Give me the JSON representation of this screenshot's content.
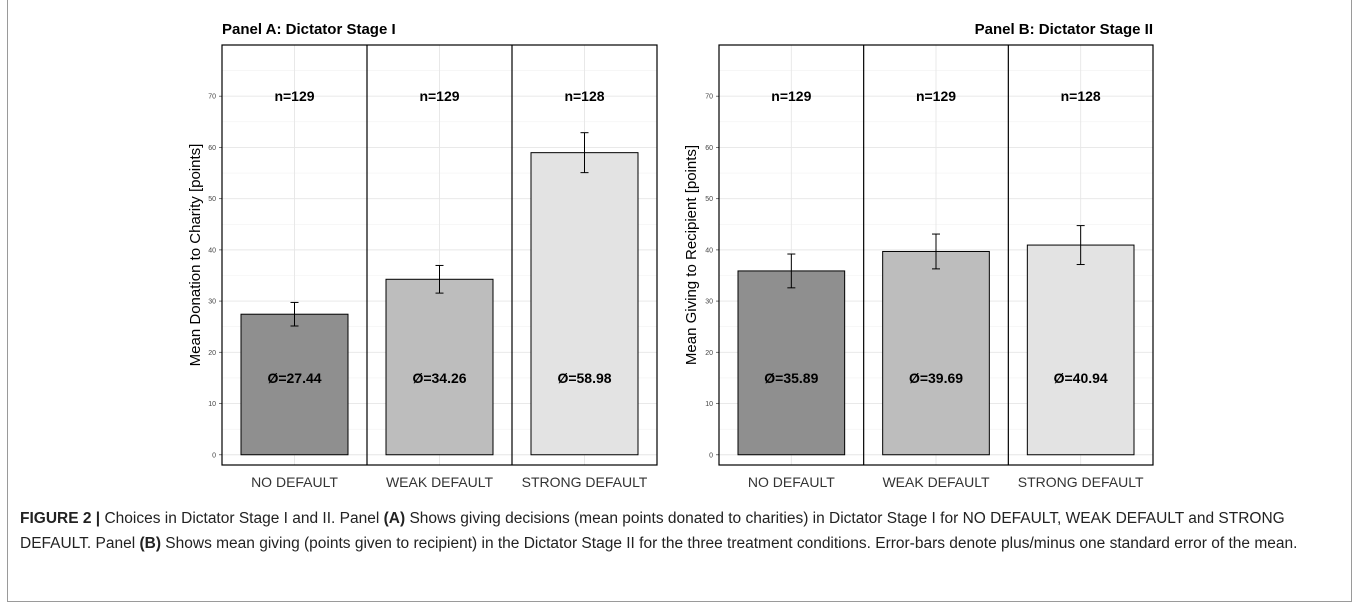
{
  "chart_data": [
    {
      "type": "bar",
      "title": "Panel A: Dictator Stage I",
      "ylabel": "Mean Donation to Charity [points]",
      "xlabel": "",
      "categories": [
        "NO DEFAULT",
        "WEAK DEFAULT",
        "STRONG DEFAULT"
      ],
      "values": [
        27.44,
        34.26,
        58.98
      ],
      "errors": [
        2.3,
        2.7,
        3.9
      ],
      "value_labels": [
        "Ø=27.44",
        "Ø=34.26",
        "Ø=58.98"
      ],
      "n_labels": [
        "n=129",
        "n=129",
        "n=128"
      ],
      "bar_colors": [
        "#8f8f8f",
        "#bdbdbd",
        "#e3e3e3"
      ],
      "ylim": [
        -2,
        80
      ],
      "yticks": [
        0,
        10,
        20,
        30,
        40,
        50,
        60,
        70
      ],
      "grid": true,
      "title_align": "left"
    },
    {
      "type": "bar",
      "title": "Panel B: Dictator Stage II",
      "ylabel": "Mean Giving to Recipient [points]",
      "xlabel": "",
      "categories": [
        "NO DEFAULT",
        "WEAK DEFAULT",
        "STRONG DEFAULT"
      ],
      "values": [
        35.89,
        39.69,
        40.94
      ],
      "errors": [
        3.3,
        3.4,
        3.8
      ],
      "value_labels": [
        "Ø=35.89",
        "Ø=39.69",
        "Ø=40.94"
      ],
      "n_labels": [
        "n=129",
        "n=129",
        "n=128"
      ],
      "bar_colors": [
        "#8f8f8f",
        "#bdbdbd",
        "#e3e3e3"
      ],
      "ylim": [
        -2,
        80
      ],
      "yticks": [
        0,
        10,
        20,
        30,
        40,
        50,
        60,
        70
      ],
      "grid": true,
      "title_align": "right"
    }
  ],
  "caption": {
    "label": "FIGURE 2 |",
    "p1": " Choices in Dictator Stage I and II. Panel ",
    "a": "(A)",
    "p2": " Shows giving decisions (mean points donated to charities) in Dictator Stage I for NO DEFAULT, WEAK DEFAULT and STRONG DEFAULT. Panel ",
    "b": "(B)",
    "p3": " Shows mean giving (points given to recipient) in the Dictator Stage II for the three treatment conditions. Error-bars denote plus/minus one standard error of the mean."
  }
}
